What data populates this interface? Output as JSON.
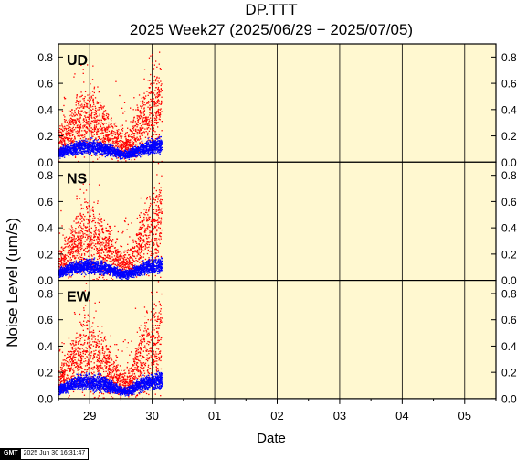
{
  "title": "DP.TTT",
  "subtitle": "2025 Week27 (2025/06/29 − 2025/07/05)",
  "stamp": {
    "logo": "GMT",
    "time": "2025 Jun 30 16:31:47"
  },
  "colors": {
    "panel_bg": "#fff8d0",
    "series_high": "#ff0000",
    "series_low": "#0000ff",
    "frame": "#000000"
  },
  "chart_data": {
    "type": "scatter",
    "xlabel": "Date",
    "ylabel": "Noise Level (um/s)",
    "x_ticklabels": [
      "29",
      "30",
      "01",
      "02",
      "03",
      "04",
      "05"
    ],
    "x_range_days": [
      0,
      7
    ],
    "data_extent_days": [
      0,
      1.65
    ],
    "ylim": [
      0,
      0.9
    ],
    "y_ticks": [
      0.0,
      0.2,
      0.4,
      0.6,
      0.8
    ],
    "y_ticklabels": [
      "0.0",
      "0.2",
      "0.4",
      "0.6",
      "0.8"
    ],
    "grid": "vertical lines at day boundaries",
    "panels": [
      {
        "component": "UD",
        "series": [
          {
            "color": "#ff0000",
            "envelope_x": [
              0,
              0.12,
              0.25,
              0.4,
              0.55,
              0.7,
              0.85,
              0.95,
              1.05,
              1.15,
              1.3,
              1.45,
              1.6
            ],
            "median": [
              0.16,
              0.2,
              0.28,
              0.33,
              0.3,
              0.26,
              0.2,
              0.14,
              0.12,
              0.14,
              0.28,
              0.38,
              0.42
            ],
            "spread": [
              0.1,
              0.12,
              0.18,
              0.22,
              0.22,
              0.18,
              0.14,
              0.1,
              0.08,
              0.1,
              0.2,
              0.26,
              0.3
            ]
          },
          {
            "color": "#0000ff",
            "envelope_x": [
              0,
              0.12,
              0.25,
              0.4,
              0.55,
              0.7,
              0.85,
              0.95,
              1.05,
              1.15,
              1.3,
              1.45,
              1.6
            ],
            "median": [
              0.07,
              0.09,
              0.11,
              0.12,
              0.12,
              0.11,
              0.09,
              0.07,
              0.06,
              0.07,
              0.1,
              0.12,
              0.13
            ],
            "spread": [
              0.03,
              0.035,
              0.04,
              0.045,
              0.045,
              0.04,
              0.035,
              0.03,
              0.025,
              0.03,
              0.04,
              0.045,
              0.05
            ]
          }
        ]
      },
      {
        "component": "NS",
        "series": [
          {
            "color": "#ff0000",
            "envelope_x": [
              0,
              0.12,
              0.25,
              0.4,
              0.55,
              0.7,
              0.85,
              0.95,
              1.05,
              1.15,
              1.3,
              1.45,
              1.6
            ],
            "median": [
              0.14,
              0.18,
              0.28,
              0.35,
              0.33,
              0.28,
              0.2,
              0.14,
              0.12,
              0.14,
              0.28,
              0.38,
              0.42
            ],
            "spread": [
              0.08,
              0.12,
              0.2,
              0.25,
              0.25,
              0.2,
              0.14,
              0.1,
              0.08,
              0.1,
              0.22,
              0.28,
              0.3
            ]
          },
          {
            "color": "#0000ff",
            "envelope_x": [
              0,
              0.12,
              0.25,
              0.4,
              0.55,
              0.7,
              0.85,
              0.95,
              1.05,
              1.15,
              1.3,
              1.45,
              1.6
            ],
            "median": [
              0.06,
              0.08,
              0.1,
              0.11,
              0.11,
              0.1,
              0.08,
              0.06,
              0.05,
              0.06,
              0.09,
              0.11,
              0.12
            ],
            "spread": [
              0.03,
              0.035,
              0.04,
              0.045,
              0.045,
              0.04,
              0.035,
              0.03,
              0.025,
              0.03,
              0.04,
              0.045,
              0.05
            ]
          }
        ]
      },
      {
        "component": "EW",
        "series": [
          {
            "color": "#ff0000",
            "envelope_x": [
              0,
              0.12,
              0.25,
              0.4,
              0.55,
              0.7,
              0.85,
              0.95,
              1.05,
              1.15,
              1.3,
              1.45,
              1.6
            ],
            "median": [
              0.14,
              0.2,
              0.3,
              0.36,
              0.34,
              0.28,
              0.2,
              0.14,
              0.12,
              0.14,
              0.3,
              0.4,
              0.42
            ],
            "spread": [
              0.08,
              0.14,
              0.22,
              0.26,
              0.26,
              0.2,
              0.14,
              0.1,
              0.08,
              0.1,
              0.24,
              0.3,
              0.3
            ]
          },
          {
            "color": "#0000ff",
            "envelope_x": [
              0,
              0.12,
              0.25,
              0.4,
              0.55,
              0.7,
              0.85,
              0.95,
              1.05,
              1.15,
              1.3,
              1.45,
              1.6
            ],
            "median": [
              0.07,
              0.09,
              0.12,
              0.13,
              0.13,
              0.12,
              0.09,
              0.07,
              0.06,
              0.07,
              0.11,
              0.13,
              0.14
            ],
            "spread": [
              0.03,
              0.04,
              0.045,
              0.05,
              0.05,
              0.045,
              0.04,
              0.03,
              0.025,
              0.03,
              0.045,
              0.05,
              0.055
            ]
          }
        ]
      }
    ]
  }
}
